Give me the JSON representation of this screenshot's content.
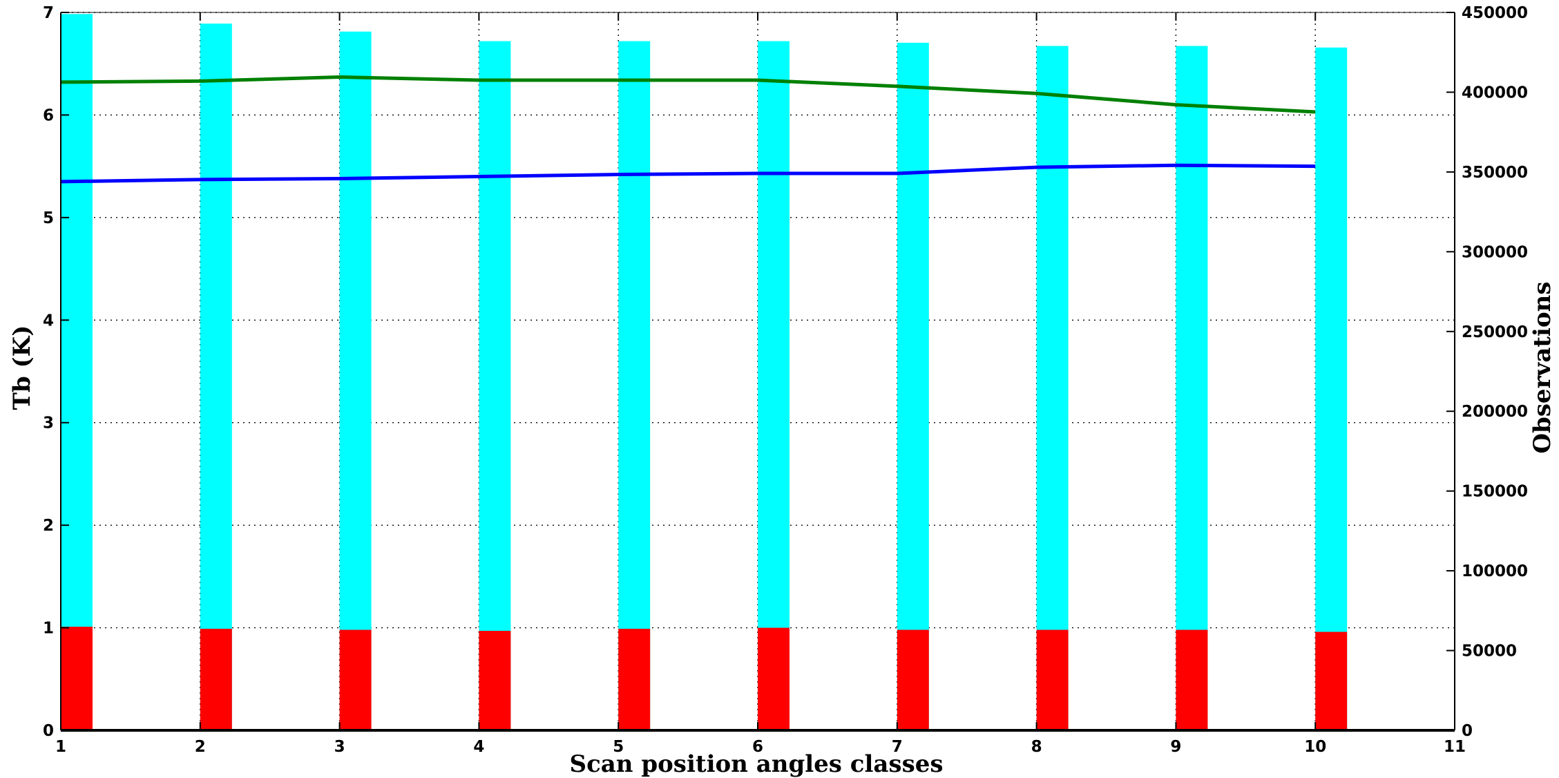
{
  "chart_data": {
    "type": "bar",
    "xlabel": "Scan position angles classes",
    "ylabel_left": "Tb (K)",
    "ylabel_right": "Observations",
    "xlim": [
      1,
      11
    ],
    "ylim_left": [
      0,
      7
    ],
    "ylim_right": [
      0,
      450000
    ],
    "grid": true,
    "x_ticks": [
      "1",
      "2",
      "3",
      "4",
      "5",
      "6",
      "7",
      "8",
      "9",
      "10",
      "11"
    ],
    "y_ticks_left": [
      "0",
      "1",
      "2",
      "3",
      "4",
      "5",
      "6",
      "7"
    ],
    "y_ticks_right": [
      "0",
      "50000",
      "100000",
      "150000",
      "200000",
      "250000",
      "300000",
      "350000",
      "400000",
      "450000"
    ],
    "x": [
      1,
      2,
      3,
      4,
      5,
      6,
      7,
      8,
      9,
      10
    ],
    "bar_series": [
      {
        "color": "#00ffff",
        "axis": "right",
        "values": [
          449000,
          443000,
          438000,
          432000,
          432000,
          432000,
          431000,
          429000,
          429000,
          428000
        ]
      },
      {
        "color": "#ff0000",
        "axis": "left",
        "values": [
          1.01,
          0.99,
          0.98,
          0.97,
          0.99,
          1.0,
          0.98,
          0.98,
          0.98,
          0.96
        ]
      }
    ],
    "line_series": [
      {
        "color": "#008000",
        "axis": "left",
        "values": [
          6.32,
          6.33,
          6.37,
          6.34,
          6.34,
          6.34,
          6.28,
          6.21,
          6.1,
          6.03
        ]
      },
      {
        "color": "#0000ff",
        "axis": "left",
        "values": [
          5.35,
          5.37,
          5.38,
          5.4,
          5.42,
          5.43,
          5.43,
          5.49,
          5.51,
          5.5
        ]
      }
    ]
  }
}
